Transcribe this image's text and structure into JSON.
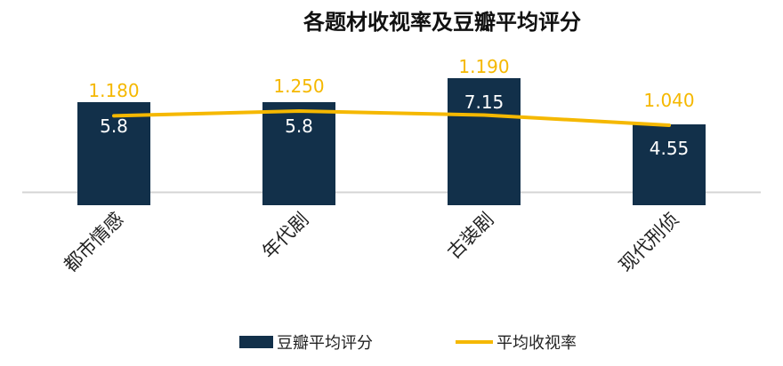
{
  "chart_data": {
    "type": "bar+line",
    "title": "各题材收视率及豆瓣平均评分",
    "categories": [
      "都市情感",
      "年代剧",
      "古装剧",
      "现代刑侦"
    ],
    "series": [
      {
        "name": "豆瓣平均评分",
        "type": "bar",
        "axis": "primary",
        "values": [
          5.8,
          5.8,
          7.15,
          4.55
        ],
        "labels": [
          "5.8",
          "5.8",
          "7.15",
          "4.55"
        ],
        "color": "#12304a"
      },
      {
        "name": "平均收视率",
        "type": "line",
        "axis": "secondary",
        "values": [
          1.18,
          1.25,
          1.19,
          1.04
        ],
        "labels": [
          "1.180",
          "1.250",
          "1.190",
          "1.040"
        ],
        "color": "#f5b800"
      }
    ],
    "primary_ylim": [
      0,
      11
    ],
    "secondary_ylim": [
      0,
      2.9
    ],
    "grid": false,
    "legend": "bottom"
  }
}
